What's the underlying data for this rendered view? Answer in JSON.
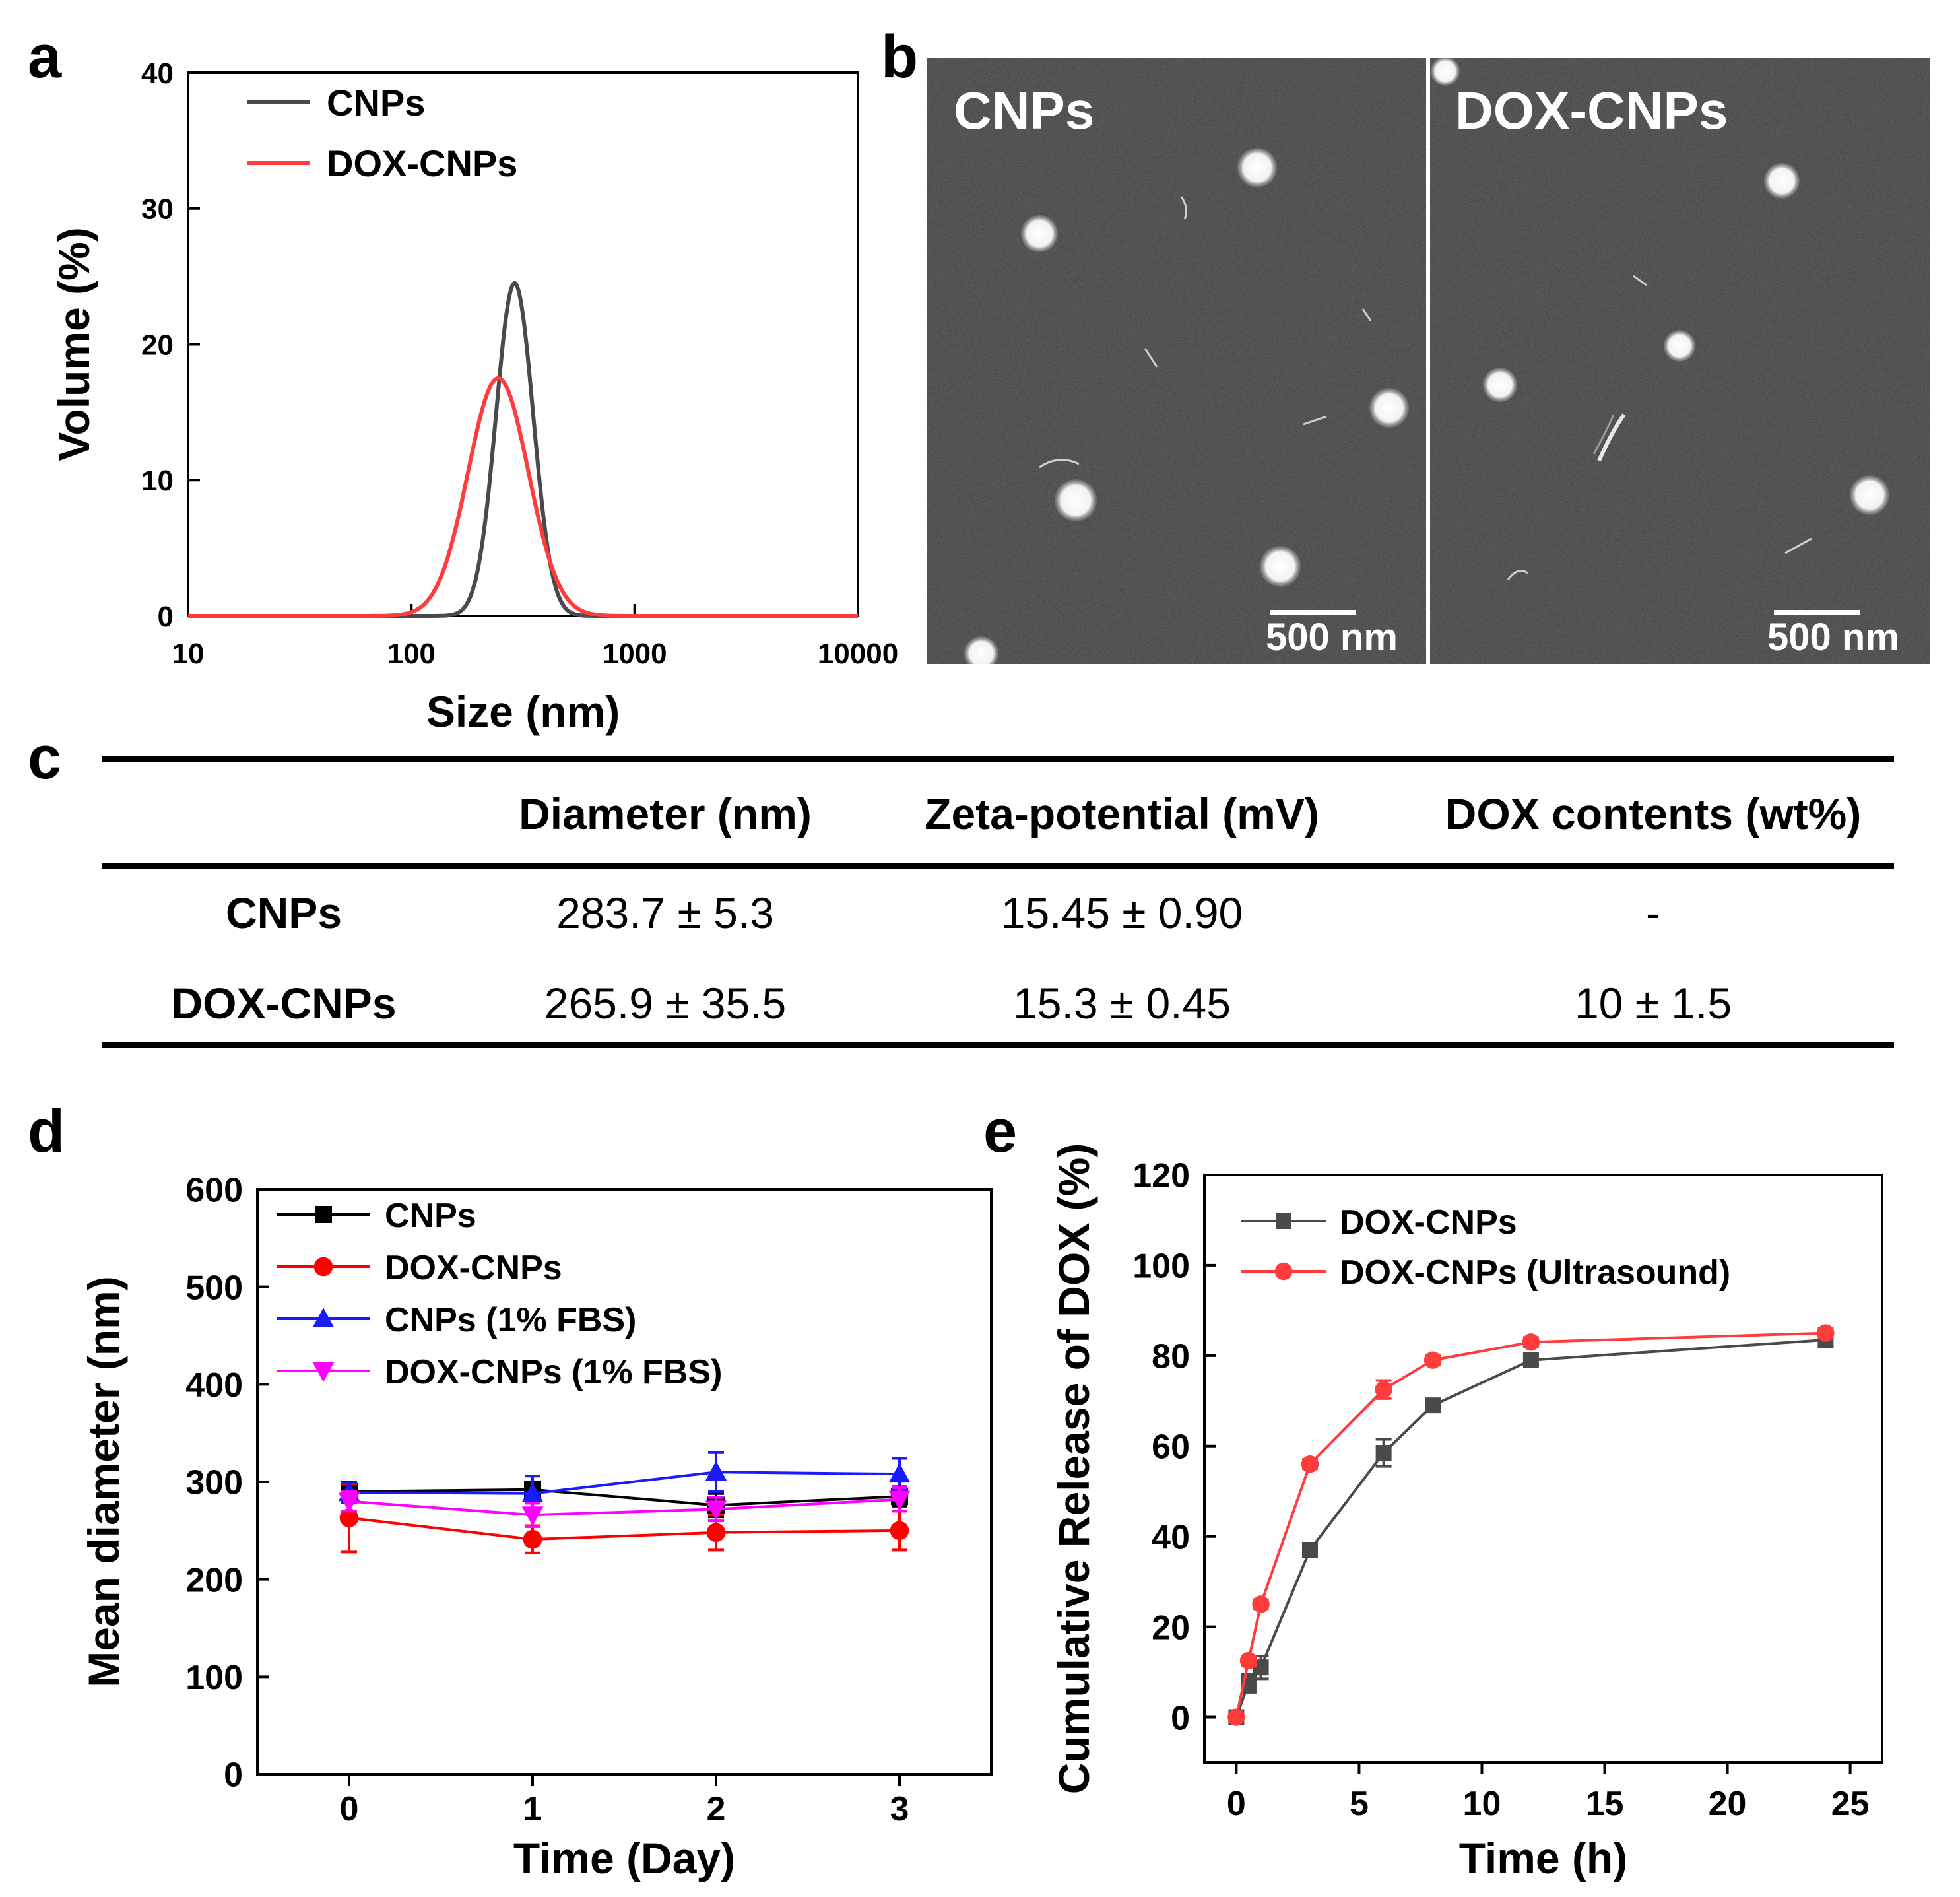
{
  "panels": {
    "a": "a",
    "b": "b",
    "c": "c",
    "d": "d",
    "e": "e"
  },
  "chart_data": [
    {
      "id": "a",
      "type": "line",
      "xscale": "log",
      "xlabel": "Size (nm)",
      "ylabel": "Volume (%)",
      "xlim": [
        10,
        10000
      ],
      "ylim": [
        0,
        40
      ],
      "xticks": [
        10,
        100,
        1000,
        10000
      ],
      "xtick_labels": [
        "10",
        "100",
        "1000",
        "10000"
      ],
      "yticks": [
        0,
        10,
        20,
        30,
        40
      ],
      "ytick_labels": [
        "0",
        "10",
        "20",
        "30",
        "40"
      ],
      "legend_position": "top-left",
      "series": [
        {
          "name": "CNPs",
          "color": "#4a4a4a",
          "peak_nm": 290,
          "peak_value": 24.5,
          "log_sigma": 0.083
        },
        {
          "name": "DOX-CNPs",
          "color": "#ff3b3b",
          "peak_nm": 245,
          "peak_value": 17.5,
          "log_sigma": 0.135
        }
      ]
    },
    {
      "id": "d",
      "type": "line",
      "xlabel": "Time (Day)",
      "ylabel": "Mean diameter (nm)",
      "xlim": [
        -0.5,
        3.5
      ],
      "ylim": [
        0,
        600
      ],
      "xticks": [
        0,
        1,
        2,
        3
      ],
      "xtick_labels": [
        "0",
        "1",
        "2",
        "3"
      ],
      "yticks": [
        0,
        100,
        200,
        300,
        400,
        500,
        600
      ],
      "ytick_labels": [
        "0",
        "100",
        "200",
        "300",
        "400",
        "500",
        "600"
      ],
      "legend_position": "top-left",
      "x": [
        0,
        1,
        2,
        3
      ],
      "series": [
        {
          "name": "CNPs",
          "color": "#000000",
          "marker": "square",
          "values": [
            290,
            292,
            276,
            285
          ],
          "errors": [
            10,
            14,
            12,
            10
          ]
        },
        {
          "name": "DOX-CNPs",
          "color": "#ff0000",
          "marker": "circle",
          "values": [
            263,
            241,
            248,
            250
          ],
          "errors": [
            35,
            14,
            18,
            20
          ]
        },
        {
          "name": "CNPs (1% FBS)",
          "color": "#1a1aff",
          "marker": "triangle-up",
          "values": [
            289,
            288,
            310,
            308
          ],
          "errors": [
            10,
            18,
            20,
            16
          ]
        },
        {
          "name": "DOX-CNPs (1% FBS)",
          "color": "#ff00ff",
          "marker": "triangle-down",
          "values": [
            280,
            266,
            272,
            282
          ],
          "errors": [
            10,
            12,
            12,
            12
          ]
        }
      ]
    },
    {
      "id": "e",
      "type": "line",
      "xlabel": "Time (h)",
      "ylabel": "Cumulative Release of DOX (%)",
      "xlim": [
        -1.3,
        26.3
      ],
      "ylim": [
        -10,
        120
      ],
      "xticks": [
        0,
        5,
        10,
        15,
        20,
        25
      ],
      "xtick_labels": [
        "0",
        "5",
        "10",
        "15",
        "20",
        "25"
      ],
      "yticks": [
        0,
        20,
        40,
        60,
        80,
        100,
        120
      ],
      "ytick_labels": [
        "0",
        "20",
        "40",
        "60",
        "80",
        "100",
        "120"
      ],
      "legend_position": "top-left",
      "series": [
        {
          "name": "DOX-CNPs",
          "color": "#4a4a4a",
          "marker": "square",
          "x": [
            0,
            0.5,
            1,
            3,
            6,
            8,
            12,
            24
          ],
          "values": [
            0,
            7.5,
            11,
            37,
            58.5,
            69,
            79,
            83.5
          ],
          "errors": [
            0,
            2,
            2.5,
            1.5,
            3,
            1,
            1,
            1.5
          ]
        },
        {
          "name": "DOX-CNPs (Ultrasound)",
          "color": "#ff3b3b",
          "marker": "circle",
          "x": [
            0,
            0.5,
            1,
            3,
            6,
            8,
            12,
            24
          ],
          "values": [
            0,
            12.5,
            25,
            56,
            72.5,
            79,
            83,
            85
          ],
          "errors": [
            0,
            1,
            1,
            1,
            2,
            1,
            1,
            1
          ]
        }
      ]
    }
  ],
  "tem": {
    "left_label": "CNPs",
    "right_label": "DOX-CNPs",
    "scale_bar_left": "500 nm",
    "scale_bar_right": "500 nm"
  },
  "table": {
    "headers": [
      "",
      "Diameter (nm)",
      "Zeta-potential (mV)",
      "DOX contents (wt%)"
    ],
    "rows": [
      {
        "name": "CNPs",
        "diameter": "283.7 ± 5.3",
        "zeta": "15.45 ± 0.90",
        "dox": "-"
      },
      {
        "name": "DOX-CNPs",
        "diameter": "265.9 ± 35.5",
        "zeta": "15.3 ± 0.45",
        "dox": "10 ± 1.5"
      }
    ]
  }
}
